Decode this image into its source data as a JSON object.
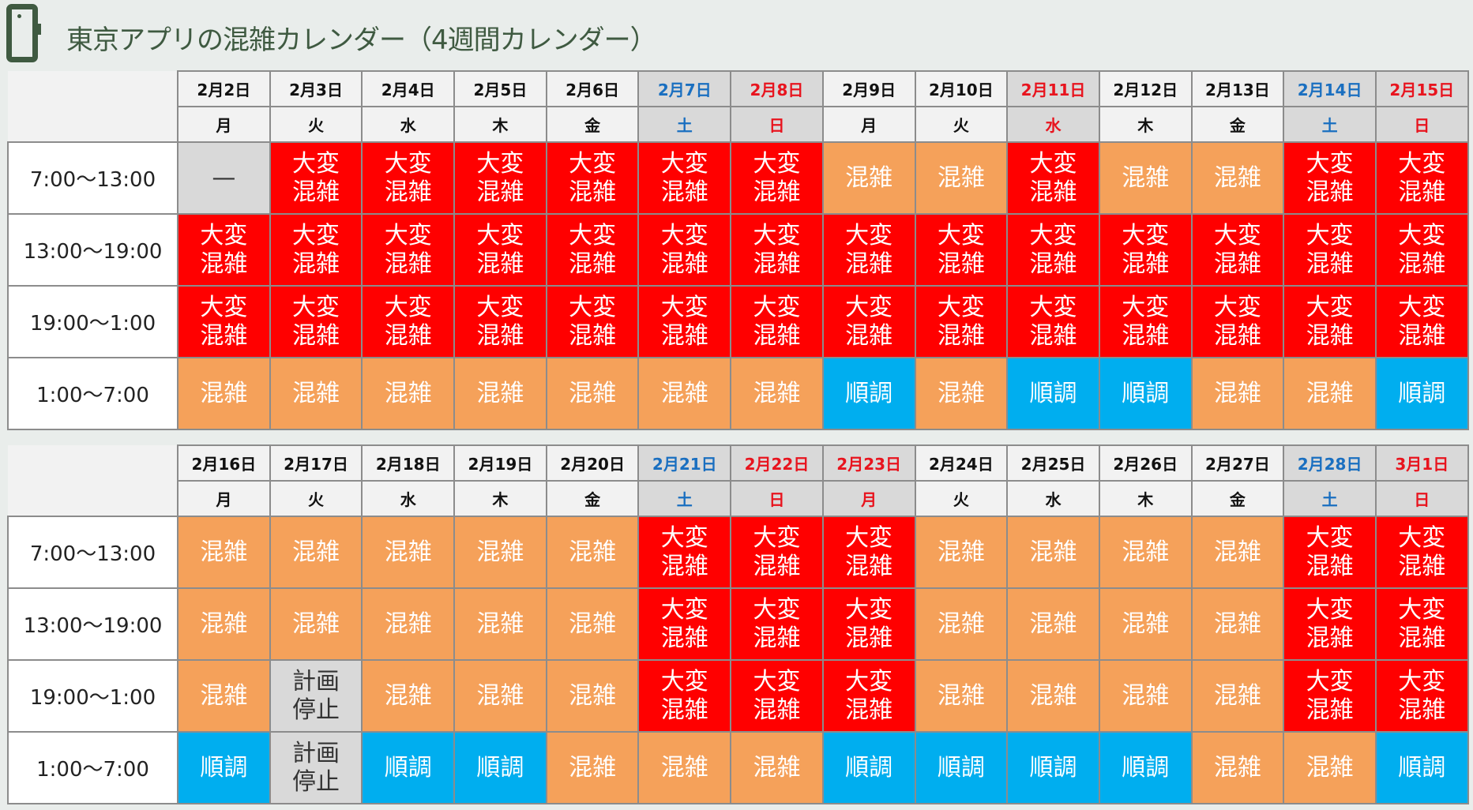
{
  "title": "東京アプリの混雑カレンダー（4週間カレンダー）",
  "legend_labels": {
    "v": "大変\n混雑",
    "c": "混雑",
    "s": "順調",
    "p": "計画\n停止",
    "n": "—"
  },
  "colors": {
    "very_crowded": "#ff0000",
    "crowded": "#f5a15a",
    "smooth": "#00aeef",
    "stopped": "#d9d9d9"
  },
  "time_slots": [
    "7:00〜13:00",
    "13:00〜19:00",
    "19:00〜1:00",
    "1:00〜7:00"
  ],
  "weeks": [
    {
      "dates": [
        {
          "date": "2月2日",
          "dow": "月",
          "type": ""
        },
        {
          "date": "2月3日",
          "dow": "火",
          "type": ""
        },
        {
          "date": "2月4日",
          "dow": "水",
          "type": ""
        },
        {
          "date": "2月5日",
          "dow": "木",
          "type": ""
        },
        {
          "date": "2月6日",
          "dow": "金",
          "type": ""
        },
        {
          "date": "2月7日",
          "dow": "土",
          "type": "sat"
        },
        {
          "date": "2月8日",
          "dow": "日",
          "type": "sun"
        },
        {
          "date": "2月9日",
          "dow": "月",
          "type": ""
        },
        {
          "date": "2月10日",
          "dow": "火",
          "type": ""
        },
        {
          "date": "2月11日",
          "dow": "水",
          "type": "sun"
        },
        {
          "date": "2月12日",
          "dow": "木",
          "type": ""
        },
        {
          "date": "2月13日",
          "dow": "金",
          "type": ""
        },
        {
          "date": "2月14日",
          "dow": "土",
          "type": "sat"
        },
        {
          "date": "2月15日",
          "dow": "日",
          "type": "sun"
        }
      ],
      "rows": [
        [
          "n",
          "v",
          "v",
          "v",
          "v",
          "v",
          "v",
          "c",
          "c",
          "v",
          "c",
          "c",
          "v",
          "v"
        ],
        [
          "v",
          "v",
          "v",
          "v",
          "v",
          "v",
          "v",
          "v",
          "v",
          "v",
          "v",
          "v",
          "v",
          "v"
        ],
        [
          "v",
          "v",
          "v",
          "v",
          "v",
          "v",
          "v",
          "v",
          "v",
          "v",
          "v",
          "v",
          "v",
          "v"
        ],
        [
          "c",
          "c",
          "c",
          "c",
          "c",
          "c",
          "c",
          "s",
          "c",
          "s",
          "s",
          "c",
          "c",
          "s"
        ]
      ]
    },
    {
      "dates": [
        {
          "date": "2月16日",
          "dow": "月",
          "type": ""
        },
        {
          "date": "2月17日",
          "dow": "火",
          "type": ""
        },
        {
          "date": "2月18日",
          "dow": "水",
          "type": ""
        },
        {
          "date": "2月19日",
          "dow": "木",
          "type": ""
        },
        {
          "date": "2月20日",
          "dow": "金",
          "type": ""
        },
        {
          "date": "2月21日",
          "dow": "土",
          "type": "sat"
        },
        {
          "date": "2月22日",
          "dow": "日",
          "type": "sun"
        },
        {
          "date": "2月23日",
          "dow": "月",
          "type": "sun"
        },
        {
          "date": "2月24日",
          "dow": "火",
          "type": ""
        },
        {
          "date": "2月25日",
          "dow": "水",
          "type": ""
        },
        {
          "date": "2月26日",
          "dow": "木",
          "type": ""
        },
        {
          "date": "2月27日",
          "dow": "金",
          "type": ""
        },
        {
          "date": "2月28日",
          "dow": "土",
          "type": "sat"
        },
        {
          "date": "3月1日",
          "dow": "日",
          "type": "sun"
        }
      ],
      "rows": [
        [
          "c",
          "c",
          "c",
          "c",
          "c",
          "v",
          "v",
          "v",
          "c",
          "c",
          "c",
          "c",
          "v",
          "v"
        ],
        [
          "c",
          "c",
          "c",
          "c",
          "c",
          "v",
          "v",
          "v",
          "c",
          "c",
          "c",
          "c",
          "v",
          "v"
        ],
        [
          "c",
          "p",
          "c",
          "c",
          "c",
          "v",
          "v",
          "v",
          "c",
          "c",
          "c",
          "c",
          "v",
          "v"
        ],
        [
          "s",
          "p",
          "s",
          "s",
          "c",
          "c",
          "c",
          "s",
          "s",
          "s",
          "s",
          "c",
          "c",
          "s"
        ]
      ]
    }
  ]
}
